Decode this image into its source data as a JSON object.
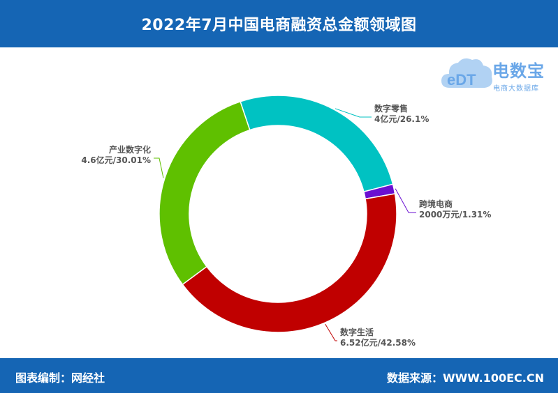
{
  "header": {
    "title": "2022年7月中国电商融资总金额领域图"
  },
  "logo": {
    "brand": "电数宝",
    "subtitle": "电商大数据库",
    "mark_text": "eDT",
    "color": "#6aa7e8"
  },
  "footer": {
    "left": "图表编制：网经社",
    "right": "数据来源：WWW.100EC.CN"
  },
  "colors": {
    "header_bg": "#1565b4",
    "label_text": "#555555"
  },
  "chart_data": {
    "type": "pie",
    "donut": true,
    "title": "2022年7月中国电商融资总金额领域图",
    "slices": [
      {
        "name": "数字零售",
        "amount": "4亿元",
        "percent": 26.1,
        "label_value": "4亿元/26.1%",
        "color": "#00c2c2"
      },
      {
        "name": "跨境电商",
        "amount": "2000万元",
        "percent": 1.31,
        "label_value": "2000万元/1.31%",
        "color": "#6a0fd2"
      },
      {
        "name": "数字生活",
        "amount": "6.52亿元",
        "percent": 42.58,
        "label_value": "6.52亿元/42.58%",
        "color": "#c00000"
      },
      {
        "name": "产业数字化",
        "amount": "4.6亿元",
        "percent": 30.01,
        "label_value": "4.6亿元/30.01%",
        "color": "#5fc000"
      }
    ]
  }
}
